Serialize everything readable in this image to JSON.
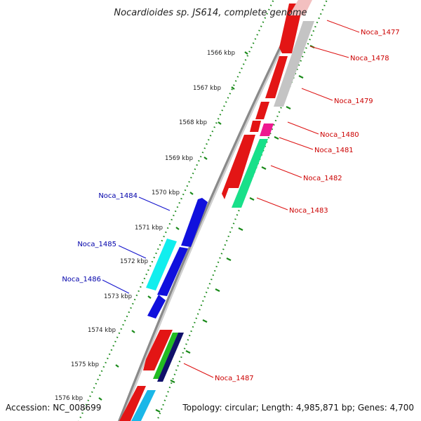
{
  "title": "Nocardioides sp. JS614, complete genome",
  "footer": {
    "accession": "Accession: NC_008699",
    "summary": "Topology: circular; Length: 4,985,871 bp; Genes: 4,700"
  },
  "colors": {
    "backbone": "#8a8a8a",
    "tick_track": "#1a8a1a",
    "red_label": "#cc0000",
    "blue_label": "#0000aa"
  },
  "ticks": [
    "1566 kbp",
    "1567 kbp",
    "1568 kbp",
    "1569 kbp",
    "1570 kbp",
    "1571 kbp",
    "1572 kbp",
    "1573 kbp",
    "1574 kbp",
    "1575 kbp",
    "1576 kbp"
  ],
  "genes_right": [
    {
      "name": "Noca_1477"
    },
    {
      "name": "Noca_1478"
    },
    {
      "name": "Noca_1479"
    },
    {
      "name": "Noca_1480"
    },
    {
      "name": "Noca_1481"
    },
    {
      "name": "Noca_1482"
    },
    {
      "name": "Noca_1483"
    },
    {
      "name": "Noca_1487"
    }
  ],
  "genes_left": [
    {
      "name": "Noca_1484"
    },
    {
      "name": "Noca_1485"
    },
    {
      "name": "Noca_1486"
    }
  ]
}
